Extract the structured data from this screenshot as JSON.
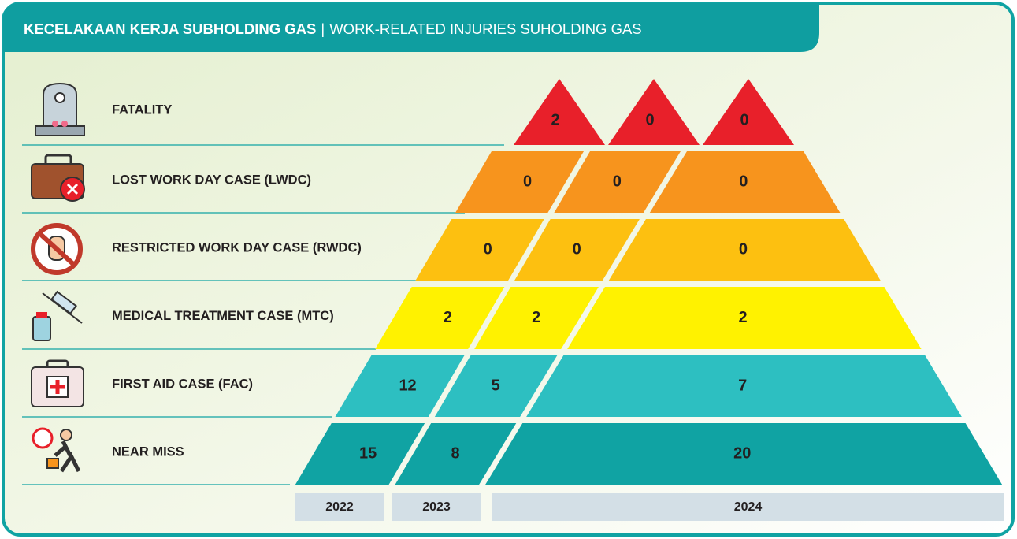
{
  "header": {
    "title_bold": "KECELAKAAN KERJA SUBHOLDING GAS",
    "separator": "|",
    "title_rest": "WORK-RELATED INJURIES SUHOLDING GAS"
  },
  "years": [
    "2022",
    "2023",
    "2024"
  ],
  "rows": [
    {
      "label": "FATALITY",
      "values": [
        2,
        0,
        0
      ]
    },
    {
      "label": "LOST WORK DAY CASE (LWDC)",
      "values": [
        0,
        0,
        0
      ]
    },
    {
      "label": "RESTRICTED WORK DAY CASE (RWDC)",
      "values": [
        0,
        0,
        0
      ]
    },
    {
      "label": "MEDICAL TREATMENT CASE (MTC)",
      "values": [
        2,
        2,
        2
      ]
    },
    {
      "label": "FIRST AID CASE (FAC)",
      "values": [
        12,
        5,
        7
      ]
    },
    {
      "label": "NEAR MISS",
      "values": [
        15,
        8,
        20
      ]
    }
  ]
}
